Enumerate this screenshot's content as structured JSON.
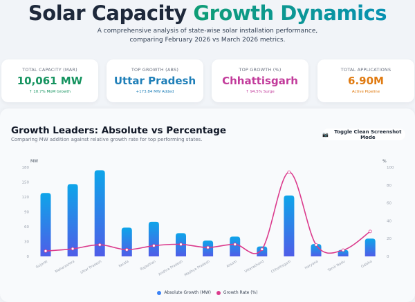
{
  "header": {
    "title_main": "Solar Capacity",
    "title_accent": "Growth Dynamics",
    "subtitle_line1": "A comprehensive analysis of state-wise solar installation performance,",
    "subtitle_line2": "comparing February 2026 vs March 2026 metrics."
  },
  "cards": [
    {
      "label": "TOTAL CAPACITY (MAR)",
      "value": "10,061 MW",
      "sub": "↑ 10.7% MoM Growth",
      "color": "#15935f"
    },
    {
      "label": "TOP GROWTH (ABS)",
      "value": "Uttar Pradesh",
      "sub": "+173.84 MW Added",
      "color": "#1f7fb8"
    },
    {
      "label": "TOP GROWTH (%)",
      "value": "Chhattisgarh",
      "sub": "↑ 94.5% Surge",
      "color": "#c23b9b"
    },
    {
      "label": "TOTAL APPLICATIONS",
      "value": "6.90M",
      "sub": "Active Pipeline",
      "color": "#e07b12"
    }
  ],
  "panel": {
    "title": "Growth Leaders: Absolute vs Percentage",
    "subtitle": "Comparing MW addition against relative growth rate for top performing states.",
    "button_icon": "camera-icon",
    "button_label": "Toggle Clean Screenshot Mode"
  },
  "chart_data": {
    "type": "bar",
    "categories": [
      "Gujarat",
      "Maharashtra",
      "Uttar Pradesh",
      "Kerala",
      "Rajasthan",
      "Andhra Pradesh",
      "Madhya Pradesh",
      "Assam",
      "Uttarakhand",
      "Chhattisgarh",
      "Haryana",
      "Tamil Nadu",
      "Odisha"
    ],
    "series": [
      {
        "name": "Absolute Growth (MW)",
        "type": "bar",
        "axis": "left",
        "color": "#3b82f6",
        "values": [
          128,
          146,
          173.84,
          58,
          70,
          47,
          32,
          40,
          20,
          123,
          25,
          13,
          36
        ]
      },
      {
        "name": "Growth Rate (%)",
        "type": "line",
        "axis": "right",
        "color": "#db3a8c",
        "values": [
          6,
          8.5,
          13,
          7.5,
          12,
          13.5,
          10,
          13.5,
          8,
          94.5,
          13,
          7,
          28
        ]
      }
    ],
    "y_left": {
      "label": "MW",
      "range": [
        0,
        180
      ],
      "ticks": [
        0,
        30,
        60,
        90,
        120,
        150,
        180
      ]
    },
    "y_right": {
      "label": "%",
      "range": [
        0,
        100
      ],
      "ticks": [
        0,
        20,
        40,
        60,
        80,
        100
      ]
    },
    "grid": false,
    "legend_position": "bottom"
  }
}
